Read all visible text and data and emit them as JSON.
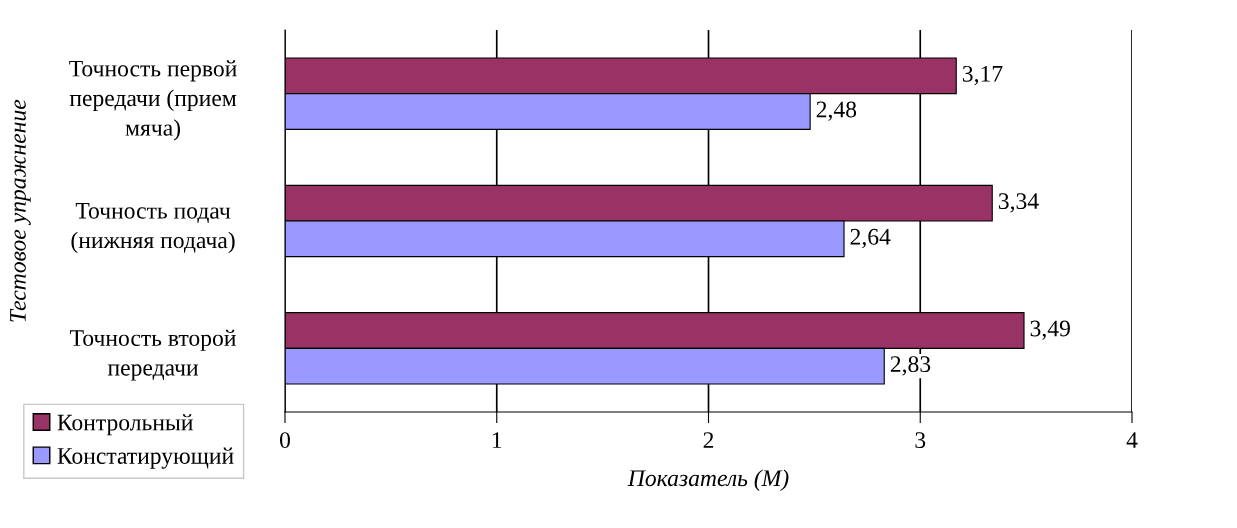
{
  "chart_data": {
    "type": "bar",
    "orientation": "horizontal",
    "categories": [
      "Точность первой передачи (прием мяча)",
      "Точность подач (нижняя подача)",
      "Точность второй передачи"
    ],
    "series": [
      {
        "name": "Контрольный",
        "color": "#993366",
        "values": [
          3.17,
          3.34,
          3.49
        ],
        "value_labels": [
          "3,17",
          "3,34",
          "3,49"
        ]
      },
      {
        "name": "Констатирующий",
        "color": "#9999ff",
        "values": [
          2.48,
          2.64,
          2.83
        ],
        "value_labels": [
          "2,48",
          "2,64",
          "2,83"
        ]
      }
    ],
    "xlabel": "Показатель (М)",
    "ylabel": "Тестовое упражнение",
    "xlim": [
      0,
      4
    ],
    "xticks": [
      0,
      1,
      2,
      3,
      4
    ],
    "grid": "x",
    "legend": "bottom left"
  }
}
